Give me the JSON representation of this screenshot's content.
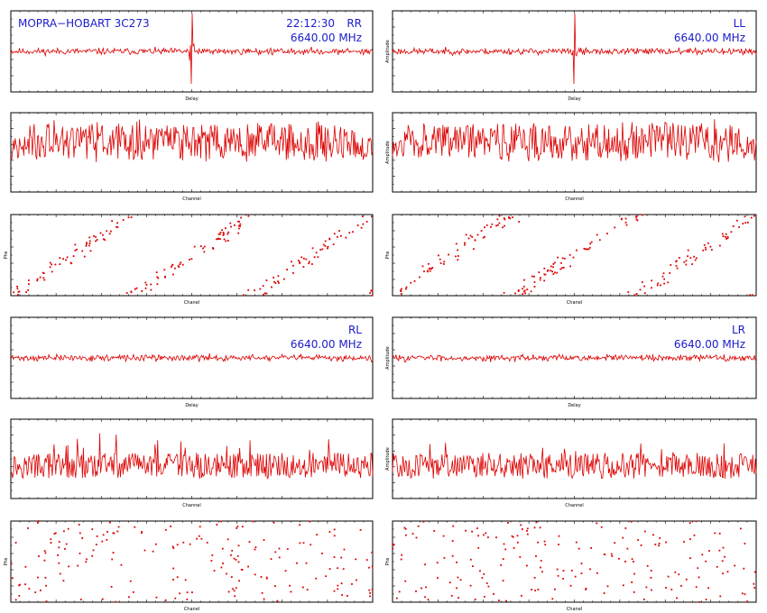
{
  "info": {
    "title": "MOPRA−HOBART 3C273",
    "time": "22:12:30",
    "frequency": "6640.00 MHz"
  },
  "colors": {
    "trace": "#dd0000",
    "label": "#1c1ccc",
    "axis": "#000000"
  },
  "chart_data": [
    {
      "id": "rr-delay",
      "type": "line",
      "pol": "RR",
      "xlabel": "Delay",
      "ylabel": "",
      "xlim": [
        -256,
        256
      ],
      "ylim": [
        -3,
        3
      ],
      "grid": false,
      "series": [
        {
          "shape": "delay-spike",
          "seed": 11,
          "spike": true
        }
      ]
    },
    {
      "id": "ll-delay",
      "type": "line",
      "pol": "LL",
      "xlabel": "Delay",
      "ylabel": "Amplitude",
      "xlim": [
        -256,
        256
      ],
      "ylim": [
        -3,
        3
      ],
      "grid": false,
      "series": [
        {
          "shape": "delay-spike",
          "seed": 23,
          "spike": true
        }
      ]
    },
    {
      "id": "rr-amp",
      "type": "line",
      "xlabel": "Channel",
      "ylabel": "",
      "xlim": [
        0,
        256
      ],
      "ylim": [
        0,
        4
      ],
      "grid": false,
      "series": [
        {
          "shape": "amplitude-band",
          "seed": 31
        }
      ]
    },
    {
      "id": "ll-amp",
      "type": "line",
      "xlabel": "Channel",
      "ylabel": "Amplitude",
      "xlim": [
        0,
        256
      ],
      "ylim": [
        0,
        4
      ],
      "grid": false,
      "series": [
        {
          "shape": "amplitude-band",
          "seed": 47
        }
      ]
    },
    {
      "id": "rr-phase",
      "type": "scatter",
      "xlabel": "Chanel",
      "ylabel": "Phs",
      "xlim": [
        0,
        256
      ],
      "ylim": [
        -180,
        180
      ],
      "grid": false,
      "series": [
        {
          "shape": "phase-wrap",
          "seed": 53
        }
      ]
    },
    {
      "id": "ll-phase",
      "type": "scatter",
      "xlabel": "Chanel",
      "ylabel": "Phs",
      "xlim": [
        0,
        256
      ],
      "ylim": [
        -180,
        180
      ],
      "grid": false,
      "series": [
        {
          "shape": "phase-wrap",
          "seed": 61
        }
      ]
    },
    {
      "id": "rl-delay",
      "type": "line",
      "pol": "RL",
      "xlabel": "Delay",
      "ylabel": "",
      "xlim": [
        -256,
        256
      ],
      "ylim": [
        -3,
        3
      ],
      "grid": false,
      "series": [
        {
          "shape": "flat-noise",
          "seed": 71
        }
      ]
    },
    {
      "id": "lr-delay",
      "type": "line",
      "pol": "LR",
      "xlabel": "Delay",
      "ylabel": "Amplitude",
      "xlim": [
        -256,
        256
      ],
      "ylim": [
        -3,
        3
      ],
      "grid": false,
      "series": [
        {
          "shape": "flat-noise",
          "seed": 83
        }
      ]
    },
    {
      "id": "rl-amp",
      "type": "line",
      "xlabel": "Channel",
      "ylabel": "",
      "xlim": [
        0,
        256
      ],
      "ylim": [
        0,
        4
      ],
      "grid": false,
      "series": [
        {
          "shape": "amplitude-low",
          "seed": 97
        }
      ]
    },
    {
      "id": "lr-amp",
      "type": "line",
      "xlabel": "Channel",
      "ylabel": "Amplitude",
      "xlim": [
        0,
        256
      ],
      "ylim": [
        0,
        4
      ],
      "grid": false,
      "series": [
        {
          "shape": "amplitude-low",
          "seed": 101
        }
      ]
    },
    {
      "id": "rl-phase",
      "type": "scatter",
      "xlabel": "Chanel",
      "ylabel": "Phs",
      "xlim": [
        0,
        256
      ],
      "ylim": [
        -180,
        180
      ],
      "grid": false,
      "series": [
        {
          "shape": "phase-random",
          "seed": 113
        }
      ]
    },
    {
      "id": "lr-phase",
      "type": "scatter",
      "xlabel": "Chanel",
      "ylabel": "Phs",
      "xlim": [
        0,
        256
      ],
      "ylim": [
        -180,
        180
      ],
      "grid": false,
      "series": [
        {
          "shape": "phase-random",
          "seed": 127
        }
      ]
    }
  ]
}
